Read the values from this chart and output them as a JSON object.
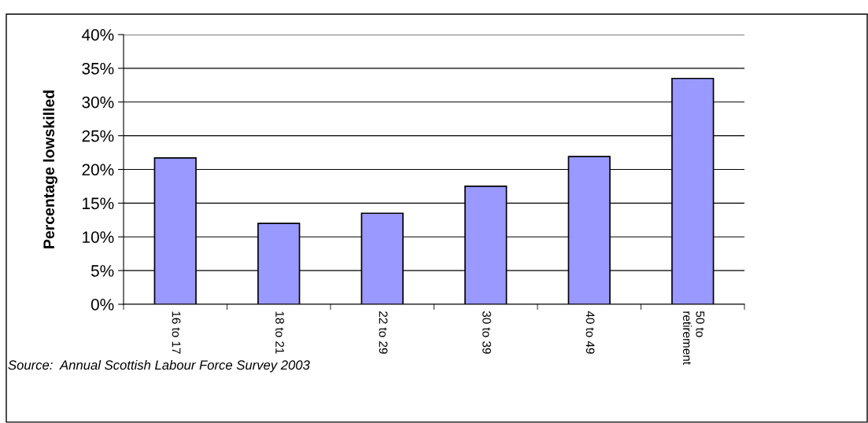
{
  "chart_data": {
    "type": "bar",
    "ylabel": "Percentage lowskilled",
    "categories": [
      "16 to 17",
      "18 to 21",
      "22 to 29",
      "30 to 39",
      "40 to 49",
      "50 to\nretirement"
    ],
    "values": [
      21.7,
      12.0,
      13.5,
      17.5,
      21.9,
      33.5
    ],
    "color": "#9999ff",
    "ylim": [
      0,
      40
    ],
    "yticks": [
      {
        "value": 0,
        "label": "0%"
      },
      {
        "value": 5,
        "label": "5%"
      },
      {
        "value": 10,
        "label": "10%"
      },
      {
        "value": 15,
        "label": "15%"
      },
      {
        "value": 20,
        "label": "20%"
      },
      {
        "value": 25,
        "label": "25%"
      },
      {
        "value": 30,
        "label": "30%"
      },
      {
        "value": 35,
        "label": "35%"
      },
      {
        "value": 40,
        "label": "40%"
      }
    ],
    "grid": "y",
    "legend": false,
    "annotations": [
      "Source:  Annual Scottish Labour Force Survey 2003"
    ]
  }
}
